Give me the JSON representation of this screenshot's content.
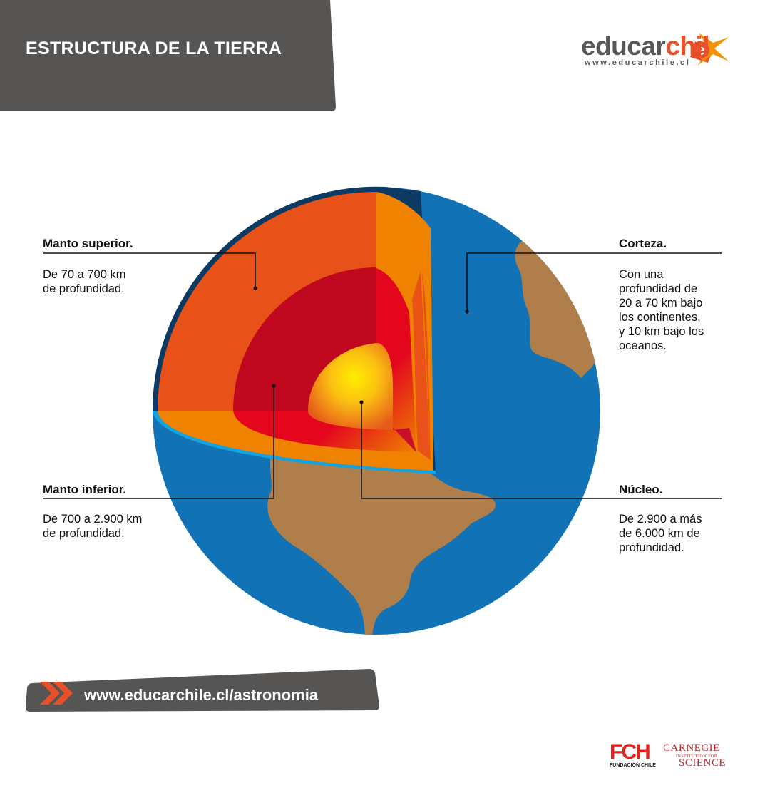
{
  "header": {
    "title": "ESTRUCTURA DE LA TIERRA"
  },
  "brand": {
    "name_part1": "educar",
    "name_part2": "chil",
    "url": "www.educarchile.cl"
  },
  "labels": {
    "manto_superior": {
      "title": "Manto superior.",
      "desc": "De 70 a 700 km\nde profundidad."
    },
    "corteza": {
      "title": "Corteza.",
      "desc": "Con una\nprofundidad de\n20 a 70 km bajo\nlos continentes,\ny 10 km bajo los\noceanos."
    },
    "manto_inferior": {
      "title": "Manto inferior.",
      "desc": "De 700 a 2.900 km\nde profundidad."
    },
    "nucleo": {
      "title": "Núcleo.",
      "desc": "De 2.900 a más\nde 6.000 km de\nprofundidad."
    }
  },
  "footer": {
    "url": "www.educarchile.cl/astronomia"
  },
  "sponsors": {
    "fch": "FCH",
    "fch_sub": "FUNDACIÓN CHILE",
    "carnegie_line1": "CARNEGIE",
    "carnegie_line2": "INSTITUTION FOR",
    "carnegie_line3": "SCIENCE"
  },
  "colors": {
    "ocean": "#1272b6",
    "land": "#af7e4a",
    "crust": "#0d3a62",
    "upper_mantle": "#e85118",
    "upper_mantle_side": "#ef8200",
    "lower_mantle": "#c0081e",
    "lower_mantle_side": "#e3061d",
    "core": "#ffd500",
    "header_bg": "#575553",
    "accent": "#e8502a"
  }
}
